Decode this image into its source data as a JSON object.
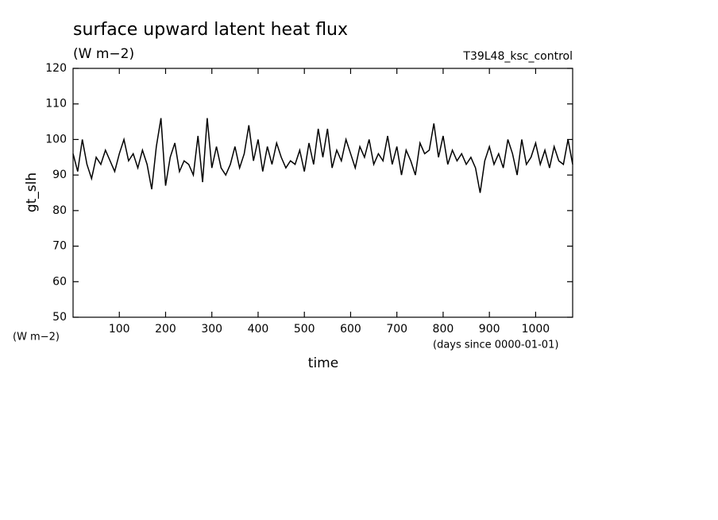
{
  "chart_data": {
    "type": "line",
    "title": "surface upward latent heat flux",
    "subtitle": "(W m−2)",
    "annotation": "T39L48_ksc_control",
    "ylabel": "gt_slh",
    "yunit": "(W m−2)",
    "xlabel": "time",
    "xunit": "(days since 0000-01-01)",
    "xlim": [
      0,
      1080
    ],
    "ylim": [
      50,
      120
    ],
    "xticks": [
      100,
      200,
      300,
      400,
      500,
      600,
      700,
      800,
      900,
      1000
    ],
    "yticks": [
      50,
      60,
      70,
      80,
      90,
      100,
      110,
      120
    ],
    "grid": false,
    "series": [
      {
        "name": "gt_slh",
        "color": "#000000",
        "x": [
          0,
          10,
          20,
          30,
          40,
          50,
          60,
          70,
          80,
          90,
          100,
          110,
          120,
          130,
          140,
          150,
          160,
          170,
          180,
          190,
          200,
          210,
          220,
          230,
          240,
          250,
          260,
          270,
          280,
          290,
          300,
          310,
          320,
          330,
          340,
          350,
          360,
          370,
          380,
          390,
          400,
          410,
          420,
          430,
          440,
          450,
          460,
          470,
          480,
          490,
          500,
          510,
          520,
          530,
          540,
          550,
          560,
          570,
          580,
          590,
          600,
          610,
          620,
          630,
          640,
          650,
          660,
          670,
          680,
          690,
          700,
          710,
          720,
          730,
          740,
          750,
          760,
          770,
          780,
          790,
          800,
          810,
          820,
          830,
          840,
          850,
          860,
          870,
          880,
          890,
          900,
          910,
          920,
          930,
          940,
          950,
          960,
          970,
          980,
          990,
          1000,
          1010,
          1020,
          1030,
          1040,
          1050,
          1060,
          1070,
          1080
        ],
        "values": [
          96,
          91,
          100,
          93,
          89,
          95,
          93,
          97,
          94,
          91,
          96,
          100,
          94,
          96,
          92,
          97,
          93,
          86,
          98,
          106,
          87,
          95,
          99,
          91,
          94,
          93,
          90,
          101,
          88,
          106,
          92,
          98,
          92,
          90,
          93,
          98,
          92,
          96,
          104,
          94,
          100,
          91,
          98,
          93,
          99,
          95,
          92,
          94,
          93,
          97,
          91,
          99,
          93,
          103,
          95,
          103,
          92,
          97,
          94,
          100,
          96,
          92,
          98,
          95,
          100,
          93,
          96,
          94,
          101,
          93,
          98,
          90,
          97,
          94,
          90,
          99,
          96,
          97,
          104.5,
          95,
          101,
          93,
          97,
          94,
          96,
          93,
          95,
          92,
          85,
          94,
          98,
          93,
          96,
          92,
          100,
          96,
          90,
          100,
          93,
          95,
          99,
          93,
          97,
          92,
          98,
          94,
          93,
          100,
          93
        ]
      }
    ]
  }
}
